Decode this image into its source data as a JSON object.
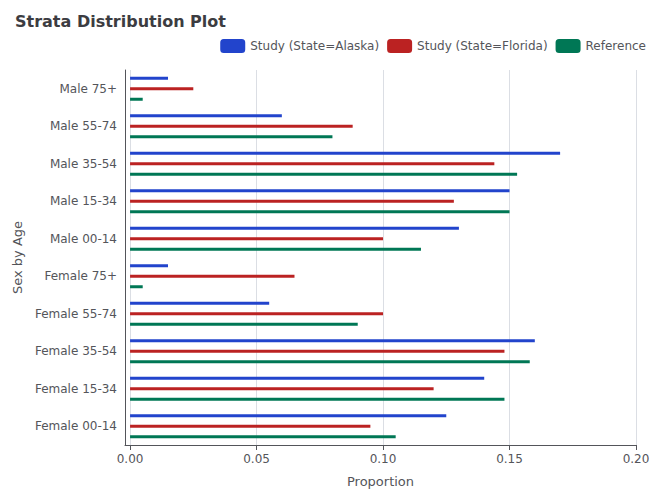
{
  "chart_data": {
    "type": "bar",
    "orientation": "horizontal",
    "title": "Strata Distribution Plot",
    "xlabel": "Proportion",
    "ylabel": "Sex by Age",
    "categories": [
      "Male 75+",
      "Male 55-74",
      "Male 35-54",
      "Male 15-34",
      "Male 00-14",
      "Female 75+",
      "Female 55-74",
      "Female 35-54",
      "Female 15-34",
      "Female 00-14"
    ],
    "series": [
      {
        "name": "Study (State=Alaska)",
        "color": "#2244cc",
        "values": [
          0.015,
          0.06,
          0.17,
          0.15,
          0.13,
          0.015,
          0.055,
          0.16,
          0.14,
          0.125
        ]
      },
      {
        "name": "Study (State=Florida)",
        "color": "#bb2222",
        "values": [
          0.025,
          0.088,
          0.144,
          0.128,
          0.1,
          0.065,
          0.1,
          0.148,
          0.12,
          0.095
        ]
      },
      {
        "name": "Reference",
        "color": "#007755",
        "values": [
          0.005,
          0.08,
          0.153,
          0.15,
          0.115,
          0.005,
          0.09,
          0.158,
          0.148,
          0.105
        ]
      }
    ],
    "xlim": [
      -0.002,
      0.2
    ],
    "xticks": [
      {
        "value": 0.0,
        "label": "0.00"
      },
      {
        "value": 0.05,
        "label": "0.05"
      },
      {
        "value": 0.1,
        "label": "0.10"
      },
      {
        "value": 0.15,
        "label": "0.15"
      },
      {
        "value": 0.2,
        "label": "0.20"
      }
    ],
    "grid": true,
    "legend": "upper right"
  }
}
